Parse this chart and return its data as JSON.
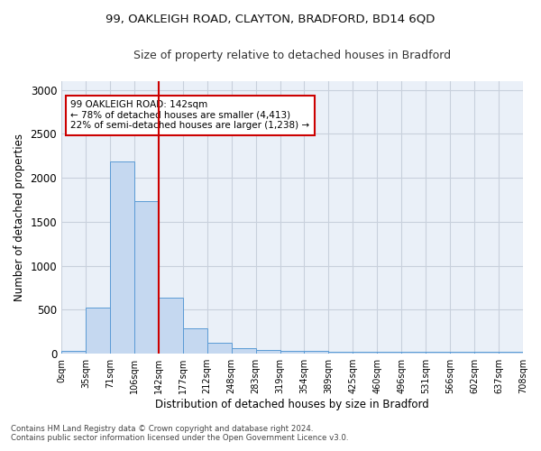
{
  "title1": "99, OAKLEIGH ROAD, CLAYTON, BRADFORD, BD14 6QD",
  "title2": "Size of property relative to detached houses in Bradford",
  "xlabel": "Distribution of detached houses by size in Bradford",
  "ylabel": "Number of detached properties",
  "annotation_line1": "99 OAKLEIGH ROAD: 142sqm",
  "annotation_line2": "← 78% of detached houses are smaller (4,413)",
  "annotation_line3": "22% of semi-detached houses are larger (1,238) →",
  "footer1": "Contains HM Land Registry data © Crown copyright and database right 2024.",
  "footer2": "Contains public sector information licensed under the Open Government Licence v3.0.",
  "bar_values": [
    30,
    525,
    2190,
    1740,
    635,
    285,
    125,
    65,
    45,
    35,
    30,
    25,
    20,
    20,
    25,
    20,
    20,
    20,
    20
  ],
  "bar_color": "#c5d8f0",
  "bar_edge_color": "#5b9bd5",
  "vline_x": 4,
  "vline_color": "#cc0000",
  "ylim": [
    0,
    3100
  ],
  "yticks": [
    0,
    500,
    1000,
    1500,
    2000,
    2500,
    3000
  ],
  "xtick_labels": [
    "0sqm",
    "35sqm",
    "71sqm",
    "106sqm",
    "142sqm",
    "177sqm",
    "212sqm",
    "248sqm",
    "283sqm",
    "319sqm",
    "354sqm",
    "389sqm",
    "425sqm",
    "460sqm",
    "496sqm",
    "531sqm",
    "566sqm",
    "602sqm",
    "637sqm",
    "708sqm"
  ],
  "background_color": "#ffffff",
  "ax_facecolor": "#eaf0f8",
  "grid_color": "#c8d0dc"
}
